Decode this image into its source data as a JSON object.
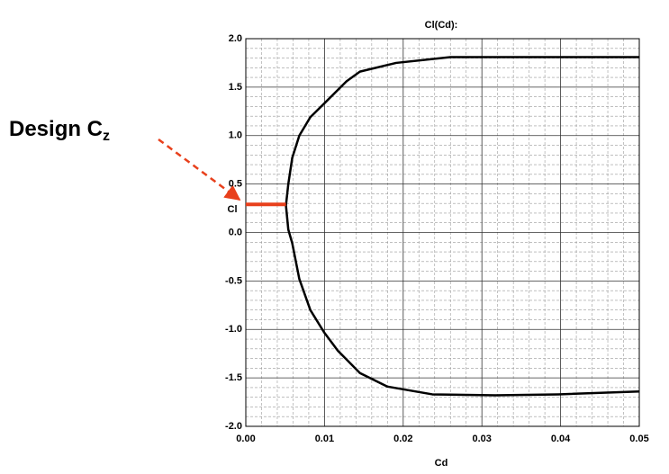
{
  "chart_data": {
    "type": "line",
    "title": "Cl(Cd):",
    "x_label": "Cd",
    "y_label": "Cl",
    "x": [
      0.05,
      0.0374,
      0.026,
      0.0191,
      0.0145,
      0.0128,
      0.00995,
      0.0082,
      0.0068,
      0.0059,
      0.0054,
      0.0051,
      0.0054,
      0.0059,
      0.0068,
      0.0082,
      0.00995,
      0.0117,
      0.0145,
      0.018,
      0.0237,
      0.0317,
      0.0397,
      0.05
    ],
    "values": [
      1.81,
      1.81,
      1.81,
      1.75,
      1.66,
      1.56,
      1.33,
      1.19,
      1.0,
      0.77,
      0.5,
      0.28,
      0.03,
      -0.11,
      -0.48,
      -0.8,
      -1.03,
      -1.22,
      -1.45,
      -1.59,
      -1.67,
      -1.68,
      -1.67,
      -1.64
    ],
    "color": "#000000",
    "xlim": [
      0,
      0.05
    ],
    "xticks": [
      {
        "value": 0,
        "label": "0.00"
      },
      {
        "value": 0.01,
        "label": "0.01"
      },
      {
        "value": 0.02,
        "label": "0.02"
      },
      {
        "value": 0.03,
        "label": "0.03"
      },
      {
        "value": 0.04,
        "label": "0.04"
      },
      {
        "value": 0.05,
        "label": "0.05"
      }
    ],
    "ylim": [
      -2,
      2
    ],
    "yticks": [
      {
        "value": -2,
        "label": "-2.0"
      },
      {
        "value": -1.5,
        "label": "-1.5"
      },
      {
        "value": -1,
        "label": "-1.0"
      },
      {
        "value": -0.5,
        "label": "-0.5"
      },
      {
        "value": 0,
        "label": "0.0"
      },
      {
        "value": 0.5,
        "label": "0.5"
      },
      {
        "value": 1,
        "label": "1.0"
      },
      {
        "value": 1.5,
        "label": "1.5"
      },
      {
        "value": 2,
        "label": "2.0"
      }
    ],
    "grid": true,
    "minor_divisions": 5,
    "design_line": {
      "x": [
        0,
        0.0051
      ],
      "y": 0.29,
      "color": "#e8401c"
    },
    "annotation": {
      "text": "Design C",
      "subscript": "z"
    }
  }
}
